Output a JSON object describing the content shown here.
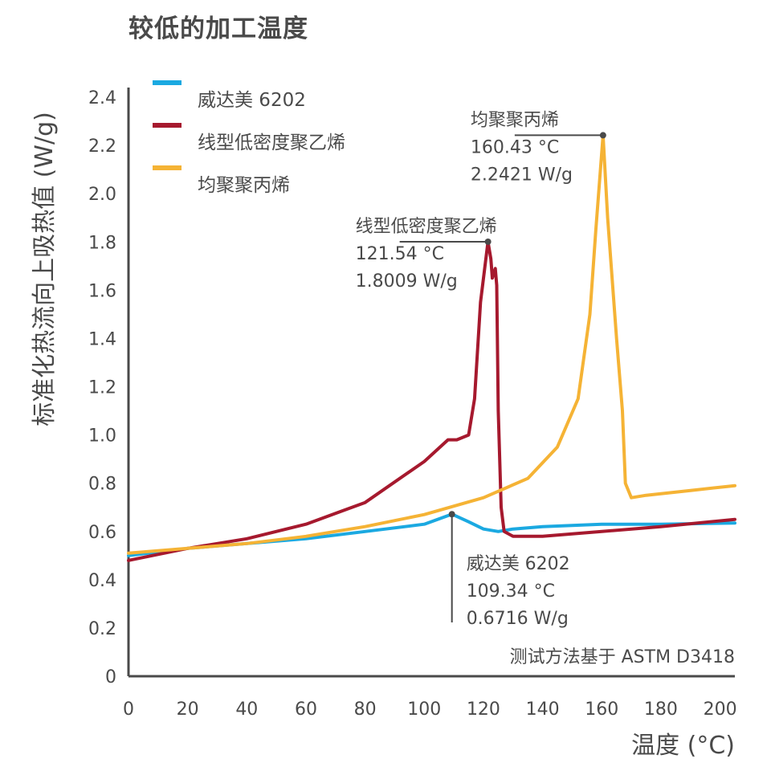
{
  "chart_data": {
    "type": "line",
    "title": "较低的加工温度",
    "xlabel": "温度 (°C)",
    "ylabel": "标准化热流向上吸热值 (W/g)",
    "xlim": [
      0,
      205
    ],
    "ylim": [
      0,
      2.4
    ],
    "xticks": [
      0,
      20,
      40,
      60,
      80,
      100,
      120,
      140,
      160,
      180,
      200
    ],
    "yticks": [
      "0",
      "0.2",
      "0.4",
      "0.6",
      "0.8",
      "1.0",
      "1.2",
      "1.4",
      "1.6",
      "1.8",
      "2.0",
      "2.2",
      "2.4"
    ],
    "grid": false,
    "legend_position": "top-left",
    "note": "测试方法基于 ASTM D3418",
    "series": [
      {
        "name": "威达美 6202",
        "color": "#1ba9e1",
        "x": [
          0,
          20,
          40,
          60,
          80,
          100,
          109.34,
          115,
          120,
          125,
          130,
          140,
          160,
          180,
          205
        ],
        "y": [
          0.5,
          0.53,
          0.55,
          0.57,
          0.6,
          0.63,
          0.6716,
          0.64,
          0.61,
          0.6,
          0.61,
          0.62,
          0.63,
          0.63,
          0.635
        ]
      },
      {
        "name": "线型低密度聚乙烯",
        "color": "#a6192e",
        "x": [
          0,
          20,
          40,
          60,
          80,
          100,
          108,
          111,
          115,
          117,
          119,
          121.54,
          122.5,
          123,
          124,
          124.5,
          125,
          126,
          127,
          130,
          140,
          160,
          180,
          205
        ],
        "y": [
          0.48,
          0.53,
          0.57,
          0.63,
          0.72,
          0.89,
          0.98,
          0.98,
          1.0,
          1.15,
          1.55,
          1.8009,
          1.73,
          1.65,
          1.69,
          1.62,
          1.1,
          0.7,
          0.6,
          0.58,
          0.58,
          0.6,
          0.62,
          0.65
        ]
      },
      {
        "name": "均聚聚丙烯",
        "color": "#f5b335",
        "x": [
          0,
          20,
          40,
          60,
          80,
          100,
          120,
          135,
          145,
          152,
          156,
          158,
          160.43,
          162,
          165,
          167,
          168,
          170,
          175,
          190,
          205
        ],
        "y": [
          0.51,
          0.53,
          0.55,
          0.58,
          0.62,
          0.67,
          0.74,
          0.82,
          0.95,
          1.15,
          1.5,
          1.85,
          2.2421,
          1.9,
          1.4,
          1.1,
          0.8,
          0.74,
          0.75,
          0.77,
          0.79
        ]
      }
    ],
    "annotations": [
      {
        "series": "均聚聚丙烯",
        "x": 160.43,
        "y": 2.2421,
        "lines": [
          "均聚聚丙烯",
          "160.43 °C",
          "2.2421 W/g"
        ]
      },
      {
        "series": "线型低密度聚乙烯",
        "x": 121.54,
        "y": 1.8009,
        "lines": [
          "线型低密度聚乙烯",
          "121.54 °C",
          "1.8009 W/g"
        ]
      },
      {
        "series": "威达美 6202",
        "x": 109.34,
        "y": 0.6716,
        "lines": [
          "威达美 6202",
          "109.34 °C",
          "0.6716 W/g"
        ]
      }
    ]
  }
}
